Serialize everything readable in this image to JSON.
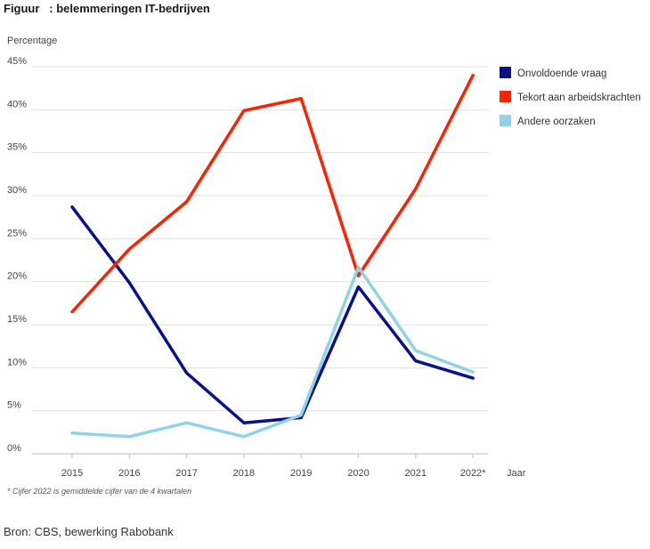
{
  "figure": {
    "title": "Figuur   : belemmeringen IT-bedrijven",
    "footnote": "*  Cijfer 2022 is gemiddelde cijfer van de 4 kwartalen",
    "source": "Bron: CBS, bewerking Rabobank"
  },
  "chart_data": {
    "type": "line",
    "title": "Figuur   : belemmeringen IT-bedrijven",
    "ylabel": "Percentage",
    "xlabel": "Jaar",
    "x": [
      "2015",
      "2016",
      "2017",
      "2018",
      "2019",
      "2020",
      "2021",
      "2022*"
    ],
    "ylim": [
      0,
      45
    ],
    "yticks": [
      0,
      5,
      10,
      15,
      20,
      25,
      30,
      35,
      40,
      45
    ],
    "ytick_labels": [
      "0%",
      "5%",
      "10%",
      "15%",
      "20%",
      "25%",
      "30%",
      "35%",
      "40%",
      "45%"
    ],
    "grid": true,
    "legend_position": "right",
    "series": [
      {
        "name": "Onvoldoende vraag",
        "color": "#0a0f8c",
        "values": [
          28.7,
          19.9,
          9.4,
          3.6,
          4.2,
          19.4,
          10.8,
          8.8
        ]
      },
      {
        "name": "Tekort aan arbeidskrachten",
        "color": "#ff2200",
        "values": [
          16.5,
          23.8,
          29.3,
          39.9,
          41.3,
          20.7,
          30.8,
          44.0
        ]
      },
      {
        "name": "Andere oorzaken",
        "color": "#8fd3e6",
        "values": [
          2.4,
          2.0,
          3.6,
          2.0,
          4.5,
          21.7,
          12.0,
          9.5
        ]
      }
    ]
  }
}
